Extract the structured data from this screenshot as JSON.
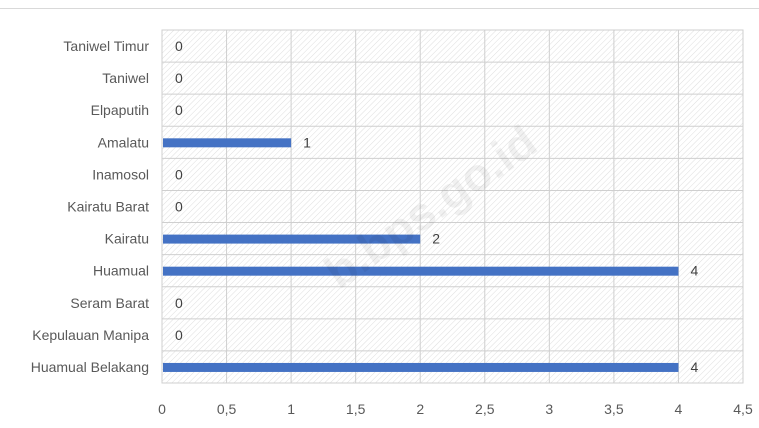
{
  "chart_data": {
    "type": "bar",
    "orientation": "horizontal",
    "categories": [
      "Taniwel Timur",
      "Taniwel",
      "Elpaputih",
      "Amalatu",
      "Inamosol",
      "Kairatu Barat",
      "Kairatu",
      "Huamual",
      "Seram Barat",
      "Kepulauan Manipa",
      "Huamual Belakang"
    ],
    "values": [
      0,
      0,
      0,
      1,
      0,
      0,
      2,
      4,
      0,
      0,
      4
    ],
    "xlim": [
      0,
      4.5
    ],
    "xticks": [
      "0",
      "0,5",
      "1",
      "1,5",
      "2",
      "2,5",
      "3",
      "3,5",
      "4",
      "4,5"
    ],
    "data_labels": true,
    "grid": true,
    "bar_color": "#4472c4"
  },
  "watermark": "b.bps.go.id"
}
